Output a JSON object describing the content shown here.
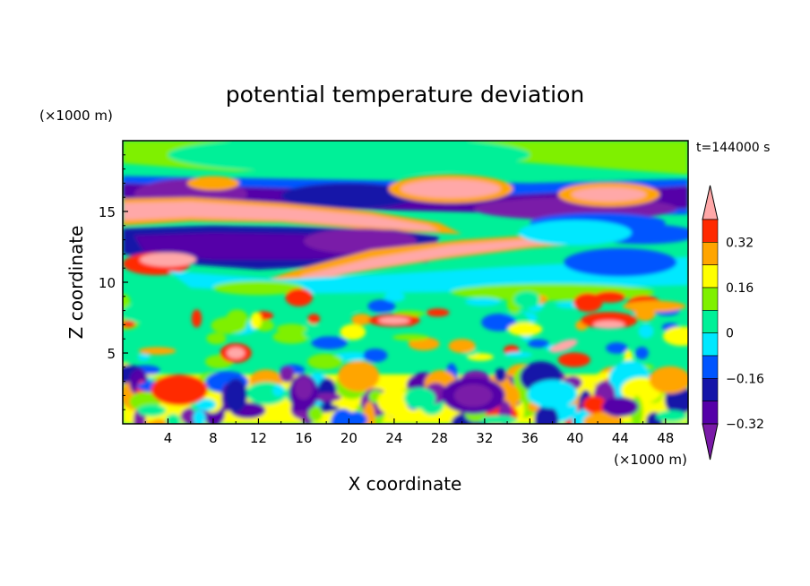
{
  "chart_data": {
    "type": "heatmap",
    "title": "potential temperature deviation",
    "time_label": "t=144000 s",
    "xlabel": "X coordinate",
    "ylabel": "Z coordinate",
    "x_unit": "(×1000 m)",
    "y_unit": "(×1000 m)",
    "xlim": [
      0,
      50
    ],
    "ylim": [
      0,
      20
    ],
    "x_ticks": [
      "4",
      "8",
      "12",
      "16",
      "20",
      "24",
      "28",
      "32",
      "36",
      "40",
      "44",
      "48"
    ],
    "y_ticks": [
      "5",
      "10",
      "15"
    ],
    "colorbar": {
      "levels": [
        -0.4,
        -0.32,
        -0.24,
        -0.16,
        -0.08,
        0,
        0.08,
        0.16,
        0.24,
        0.32,
        0.4
      ],
      "tick_labels": [
        "0.32",
        "0.16",
        "0",
        "−0.16",
        "−0.32"
      ],
      "colors": [
        "#7a1aa8",
        "#5500a8",
        "#1515a8",
        "#0055ff",
        "#00e8ff",
        "#00f098",
        "#7ff000",
        "#ffff00",
        "#ffa500",
        "#ff2a00",
        "#ffa8a8"
      ]
    },
    "features": [
      {
        "kind": "warm-band",
        "x": [
          0,
          20
        ],
        "z": [
          13.5,
          15.5
        ]
      },
      {
        "kind": "warm-band",
        "x": [
          14,
          44
        ],
        "z": [
          9.5,
          13.5
        ]
      },
      {
        "kind": "warm-cap",
        "x": [
          24,
          34
        ],
        "z": [
          16,
          17.5
        ]
      },
      {
        "kind": "warm-cap",
        "x": [
          38,
          46
        ],
        "z": [
          15.5,
          16.8
        ]
      },
      {
        "kind": "cold-band",
        "x": [
          0,
          50
        ],
        "z": [
          14.5,
          17
        ]
      },
      {
        "kind": "cold-band",
        "x": [
          2,
          28
        ],
        "z": [
          11,
          13.5
        ]
      },
      {
        "kind": "turbulent-layer",
        "x": [
          0,
          50
        ],
        "z": [
          0,
          3.5
        ]
      }
    ]
  }
}
